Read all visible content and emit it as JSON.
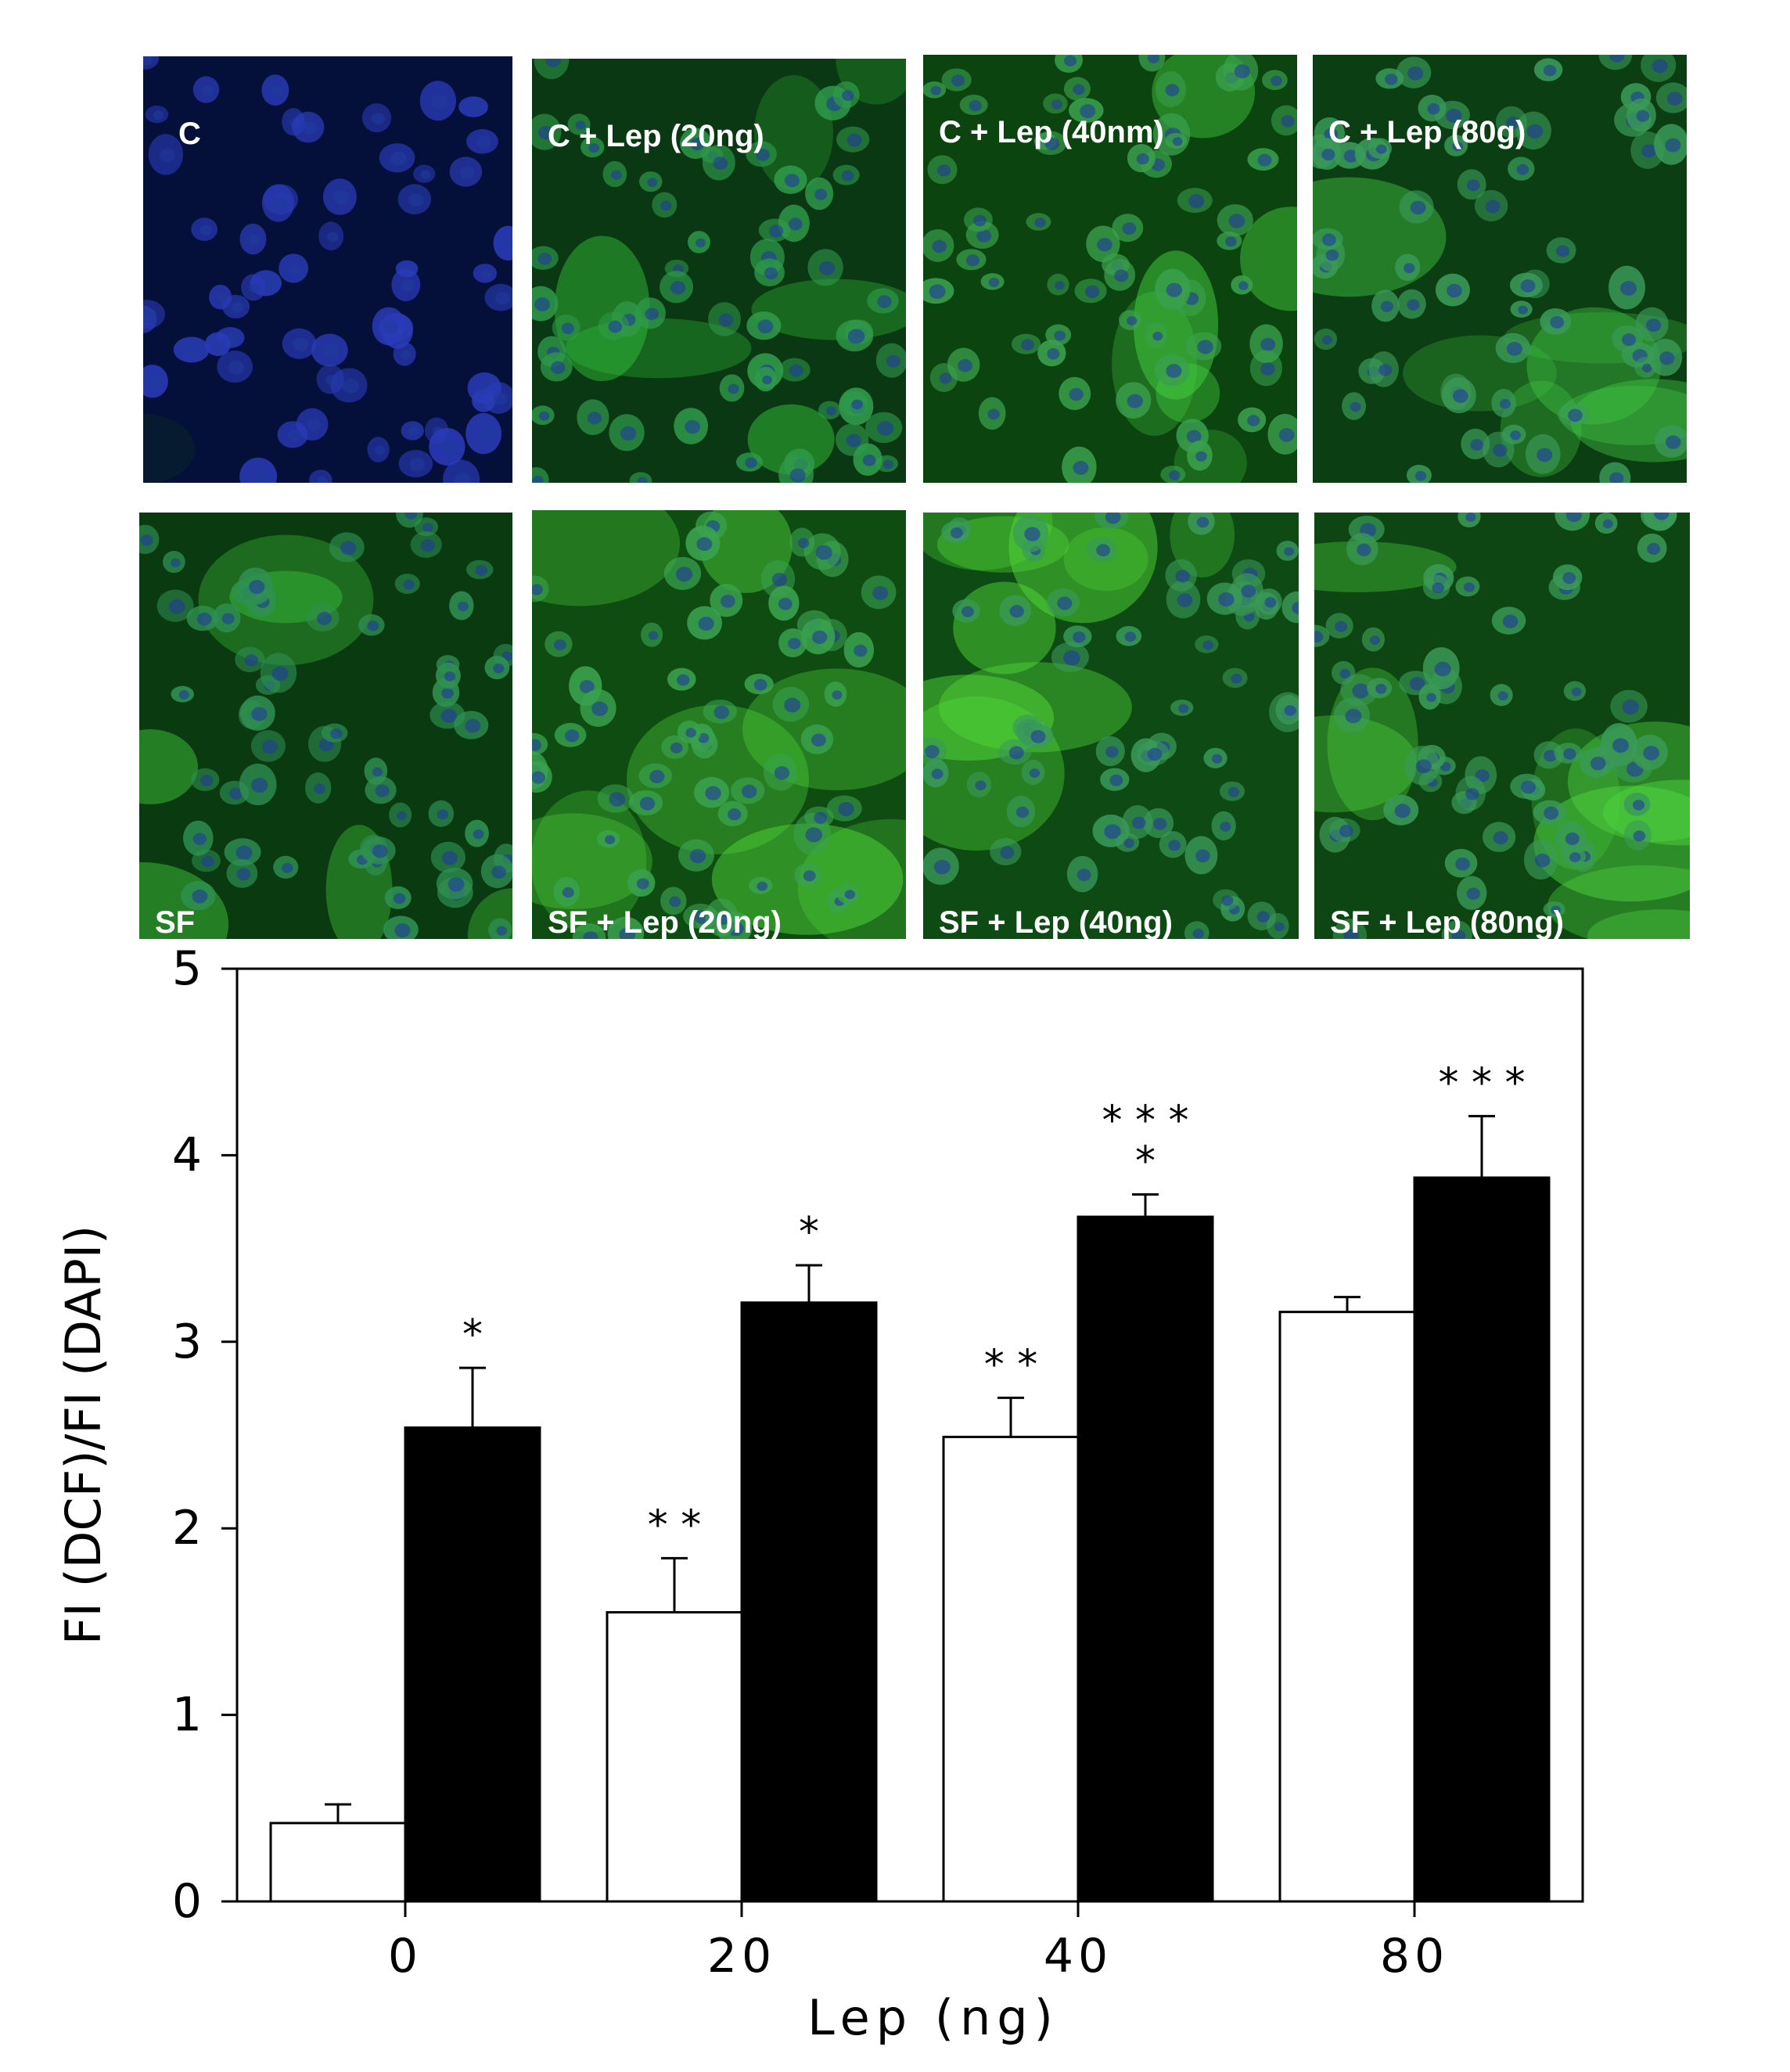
{
  "panels": [
    {
      "label": "C",
      "label_pos": "top",
      "bg": "#05103a",
      "cell": "#2a3bb8",
      "glow": "#0a2a20",
      "intensity": 0.05
    },
    {
      "label": "C + Lep (20ng)",
      "label_pos": "top",
      "bg": "#0a3812",
      "cell": "#2f9a4a",
      "glow": "#35c83c",
      "intensity": 0.55
    },
    {
      "label": "C + Lep (40nm)",
      "label_pos": "top",
      "bg": "#0c4410",
      "cell": "#3aa04c",
      "glow": "#45d240",
      "intensity": 0.6
    },
    {
      "label": "C + Lep (80g)",
      "label_pos": "top",
      "bg": "#0b3e12",
      "cell": "#3a9a58",
      "glow": "#42c844",
      "intensity": 0.65
    },
    {
      "label": "SF",
      "label_pos": "bottom",
      "bg": "#0a3a10",
      "cell": "#2f9052",
      "glow": "#3fc63a",
      "intensity": 0.6
    },
    {
      "label": "SF + Lep (20ng)",
      "label_pos": "bottom",
      "bg": "#0f4c12",
      "cell": "#3aa24e",
      "glow": "#52dc3c",
      "intensity": 0.8
    },
    {
      "label": "SF + Lep (40ng)",
      "label_pos": "bottom",
      "bg": "#0e4a14",
      "cell": "#3a9a5a",
      "glow": "#55e03a",
      "intensity": 0.85
    },
    {
      "label": "SF + Lep (80ng)",
      "label_pos": "bottom",
      "bg": "#0d4612",
      "cell": "#3a9a56",
      "glow": "#50d840",
      "intensity": 0.85
    }
  ],
  "chart_data": {
    "type": "bar",
    "categories": [
      "0",
      "20",
      "40",
      "80"
    ],
    "xlabel": "Lep (ng)",
    "ylabel": "FI (DCF)/FI (DAPI)",
    "ylim": [
      0,
      5
    ],
    "yticks": [
      "0",
      "1",
      "2",
      "3",
      "4",
      "5"
    ],
    "grid": false,
    "series": [
      {
        "color": "#ffffff",
        "values": [
          0.42,
          1.55,
          2.49,
          3.16
        ],
        "errors": [
          0.1,
          0.29,
          0.21,
          0.08
        ],
        "annotations": [
          [],
          [
            "* *"
          ],
          [
            "* *"
          ],
          []
        ]
      },
      {
        "color": "#000000",
        "values": [
          2.54,
          3.21,
          3.67,
          3.88
        ],
        "errors": [
          0.32,
          0.2,
          0.12,
          0.33
        ],
        "annotations": [
          [
            "*"
          ],
          [
            "*"
          ],
          [
            "*",
            "* * *"
          ],
          [
            "* * *"
          ]
        ]
      }
    ]
  }
}
